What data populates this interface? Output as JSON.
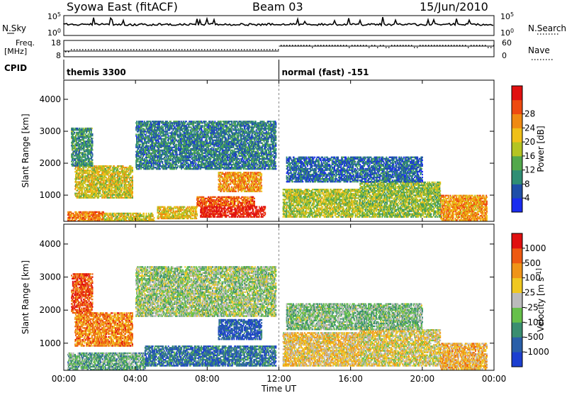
{
  "header": {
    "station": "Syowa East (fitACF)",
    "beam": "Beam 03",
    "date": "15/Jun/2010"
  },
  "labels": {
    "nsky": "N.Sky",
    "freq_line1": "Freq.",
    "freq_line2": "[MHz]",
    "cpid": "CPID",
    "nsearch": "N.Search",
    "nave": "Nave",
    "nsky_top": "10^5",
    "nsky_bottom": "10^0",
    "freq_top": "18",
    "freq_bottom": "8",
    "nave_top": "60",
    "nave_bottom": "0",
    "ns_top": "10^5",
    "ns_bottom": "10^0"
  },
  "cpid_segments": [
    {
      "start": "00:00",
      "label": "themis 3300"
    },
    {
      "start": "12:00",
      "label": "normal (fast) -151"
    }
  ],
  "chart_data": [
    {
      "type": "heatmap",
      "parameter": "Power",
      "ylabel": "Slant Range [km]",
      "xlabel": "Time UT",
      "colorbar_label": "Power [dB]",
      "ylim": [
        180,
        4600
      ],
      "yticks": [
        1000,
        2000,
        3000,
        4000
      ],
      "xlim": [
        "00:00",
        "24:00"
      ],
      "xticks": [
        "00:00",
        "04:00",
        "08:00",
        "12:00",
        "16:00",
        "20:00",
        "00:00"
      ],
      "colorbar_ticks": [
        "4",
        "8",
        "12",
        "16",
        "20",
        "24",
        "28"
      ],
      "colorbar_colors": [
        "#1a2cf0",
        "#1f4fa8",
        "#2f8e74",
        "#52a84c",
        "#b4c422",
        "#f0c018",
        "#f08a12",
        "#ee4a10",
        "#e01010"
      ],
      "regions": [
        {
          "t0": 0.2,
          "t1": 2.2,
          "r0": 180,
          "r1": 480,
          "level": 0.75
        },
        {
          "t0": 2.2,
          "t1": 5.0,
          "r0": 180,
          "r1": 420,
          "level": 0.55
        },
        {
          "t0": 5.2,
          "t1": 7.4,
          "r0": 250,
          "r1": 650,
          "level": 0.6
        },
        {
          "t0": 7.6,
          "t1": 11.2,
          "r0": 300,
          "r1": 650,
          "level": 0.95
        },
        {
          "t0": 7.4,
          "t1": 10.6,
          "r0": 650,
          "r1": 950,
          "level": 0.8
        },
        {
          "t0": 8.6,
          "t1": 11.0,
          "r0": 1100,
          "r1": 1700,
          "level": 0.7
        },
        {
          "t0": 0.6,
          "t1": 3.8,
          "r0": 900,
          "r1": 1900,
          "level": 0.55
        },
        {
          "t0": 0.4,
          "t1": 1.6,
          "r0": 1900,
          "r1": 3100,
          "level": 0.3
        },
        {
          "t0": 12.2,
          "t1": 16.5,
          "r0": 300,
          "r1": 1200,
          "level": 0.5
        },
        {
          "t0": 16.5,
          "t1": 21.0,
          "r0": 300,
          "r1": 1400,
          "level": 0.45
        },
        {
          "t0": 21.0,
          "t1": 23.6,
          "r0": 200,
          "r1": 1000,
          "level": 0.7
        },
        {
          "t0": 12.4,
          "t1": 20.0,
          "r0": 1400,
          "r1": 2200,
          "level": 0.2
        },
        {
          "t0": 4.0,
          "t1": 11.8,
          "r0": 1800,
          "r1": 3300,
          "level": 0.25
        }
      ]
    },
    {
      "type": "heatmap",
      "parameter": "Velocity",
      "ylabel": "Slant Range [km]",
      "xlabel": "Time UT",
      "colorbar_label": "Velocity [m s^-1]",
      "ylim": [
        180,
        4600
      ],
      "yticks": [
        1000,
        2000,
        3000,
        4000
      ],
      "xlim": [
        "00:00",
        "24:00"
      ],
      "xticks": [
        "00:00",
        "04:00",
        "08:00",
        "12:00",
        "16:00",
        "20:00",
        "00:00"
      ],
      "colorbar_ticks": [
        "1000",
        "500",
        "100",
        "25",
        "-25",
        "-100",
        "-500",
        "-1000"
      ],
      "colorbar_colors": [
        "#1c3fd0",
        "#2a5fa8",
        "#3a8e70",
        "#66c04a",
        "#bbbbbb",
        "#f0c820",
        "#f09418",
        "#ee5a12",
        "#e01010"
      ],
      "regions": [
        {
          "t0": 0.2,
          "t1": 4.5,
          "r0": 180,
          "r1": 700,
          "level": 0.35
        },
        {
          "t0": 4.5,
          "t1": 11.8,
          "r0": 300,
          "r1": 900,
          "level": 0.2
        },
        {
          "t0": 8.6,
          "t1": 11.0,
          "r0": 1100,
          "r1": 1700,
          "level": 0.12
        },
        {
          "t0": 0.6,
          "t1": 3.8,
          "r0": 900,
          "r1": 1900,
          "level": 0.75
        },
        {
          "t0": 0.4,
          "t1": 1.6,
          "r0": 1900,
          "r1": 3100,
          "level": 0.85
        },
        {
          "t0": 12.2,
          "t1": 16.5,
          "r0": 300,
          "r1": 1300,
          "level": 0.6
        },
        {
          "t0": 16.5,
          "t1": 21.0,
          "r0": 300,
          "r1": 1400,
          "level": 0.55
        },
        {
          "t0": 21.0,
          "t1": 23.6,
          "r0": 200,
          "r1": 1000,
          "level": 0.65
        },
        {
          "t0": 12.4,
          "t1": 20.0,
          "r0": 1400,
          "r1": 2200,
          "level": 0.4
        },
        {
          "t0": 4.0,
          "t1": 11.8,
          "r0": 1800,
          "r1": 3300,
          "level": 0.45
        }
      ]
    }
  ]
}
